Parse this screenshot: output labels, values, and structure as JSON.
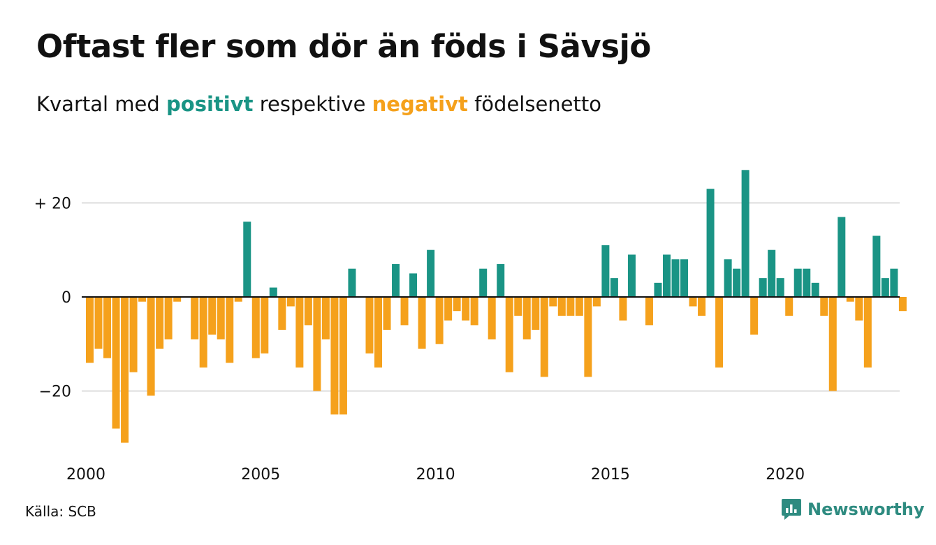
{
  "header": {
    "title": "Oftast fler som dör än föds i Sävsjö",
    "subtitle_prefix": "Kvartal med",
    "subtitle_positive": "positivt",
    "subtitle_middle": "respektive",
    "subtitle_negative": "negativt",
    "subtitle_suffix": "födelsenetto"
  },
  "footer": {
    "source": "Källa: SCB",
    "brand": "Newsworthy",
    "brand_icon": "chart-bubble-icon"
  },
  "colors": {
    "positive": "#1a9485",
    "negative": "#f5a11c",
    "grid": "#dddddd",
    "baseline": "#111111",
    "brand": "#2e8b80"
  },
  "chart_data": {
    "type": "bar",
    "x_start": "2000 Q1",
    "frequency": "quarter",
    "values": [
      -14,
      -11,
      -13,
      -28,
      -31,
      -16,
      -1,
      -21,
      -11,
      -9,
      -1,
      0,
      -9,
      -15,
      -8,
      -9,
      -14,
      -1,
      16,
      -13,
      -12,
      2,
      -7,
      -2,
      -15,
      -6,
      -20,
      -9,
      -25,
      -25,
      6,
      0,
      -12,
      -15,
      -7,
      7,
      -6,
      5,
      -11,
      10,
      -10,
      -5,
      -3,
      -5,
      -6,
      6,
      -9,
      7,
      -16,
      -4,
      -9,
      -7,
      -17,
      -2,
      -4,
      -4,
      -4,
      -17,
      -2,
      11,
      4,
      -5,
      9,
      0,
      -6,
      3,
      9,
      8,
      8,
      -2,
      -4,
      23,
      -15,
      8,
      6,
      27,
      -8,
      4,
      10,
      4,
      -4,
      6,
      6,
      3,
      -4,
      -20,
      17,
      -1,
      -5,
      -15,
      13,
      4,
      6,
      -3
    ],
    "y_ticks": [
      {
        "value": 20,
        "label": "+ 20"
      },
      {
        "value": 0,
        "label": "0"
      },
      {
        "value": -20,
        "label": "−20"
      }
    ],
    "x_ticks": [
      {
        "year": 2000,
        "label": "2000"
      },
      {
        "year": 2005,
        "label": "2005"
      },
      {
        "year": 2010,
        "label": "2010"
      },
      {
        "year": 2015,
        "label": "2015"
      },
      {
        "year": 2020,
        "label": "2020"
      }
    ],
    "ylim": [
      -33,
      30
    ],
    "grid": true,
    "legend": "none"
  }
}
